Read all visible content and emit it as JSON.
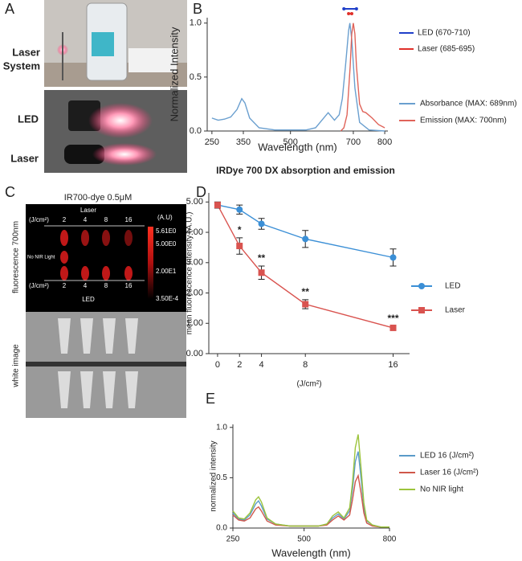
{
  "panel_labels": [
    "A",
    "B",
    "C",
    "D",
    "E"
  ],
  "panel_a": {
    "laser_system": [
      "Laser",
      "System"
    ],
    "led": "LED",
    "laser": "Laser"
  },
  "panel_c": {
    "title": "IR700-dye 0.5μM",
    "laser": "Laser",
    "led": "LED",
    "unit": "(J/cm²)",
    "doses": [
      "2",
      "4",
      "8",
      "16"
    ],
    "no_light": "No NIR Light",
    "colorbar_unit": "(A.U)",
    "colorbar_labels": [
      "5.61E0",
      "5.00E0",
      "2.00E1",
      "3.50E-4"
    ],
    "side_top": "fluorescence 700nm",
    "side_bottom": "white image"
  },
  "chart_data": [
    {
      "type": "line",
      "caption": "IRDye 700 DX absorption and emission",
      "xlabel": "Wavelength (nm)",
      "ylabel": "Normalized Intensity",
      "xlim": [
        235,
        810
      ],
      "xticks": [
        250,
        350,
        500,
        700,
        800
      ],
      "ylim": [
        0,
        1.05
      ],
      "yticks": [
        {
          "value": 0,
          "label": "0.0"
        },
        {
          "value": 0.5,
          "label": "0.5"
        },
        {
          "value": 1,
          "label": "1.0"
        }
      ],
      "legend": "right",
      "bands": [
        {
          "name": "LED (670-710)",
          "color": "#1f3fc9",
          "range": [
            670,
            710
          ]
        },
        {
          "name": "Laser (685-695)",
          "color": "#e0302a",
          "range": [
            685,
            695
          ]
        }
      ],
      "series": [
        {
          "name": "Absorbance (MAX: 689nm)",
          "color": "#6a9fcf",
          "x": [
            250,
            270,
            290,
            310,
            330,
            345,
            355,
            370,
            400,
            450,
            500,
            550,
            580,
            600,
            620,
            640,
            655,
            665,
            675,
            685,
            689,
            695,
            705,
            720,
            750,
            800
          ],
          "values": [
            0.12,
            0.1,
            0.11,
            0.13,
            0.2,
            0.3,
            0.26,
            0.12,
            0.03,
            0.01,
            0.01,
            0.01,
            0.03,
            0.1,
            0.17,
            0.1,
            0.15,
            0.3,
            0.6,
            0.93,
            1.0,
            0.85,
            0.4,
            0.08,
            0.01,
            0
          ]
        },
        {
          "name": "Emission (MAX: 700nm)",
          "color": "#e0645a",
          "x": [
            660,
            670,
            680,
            690,
            695,
            700,
            705,
            710,
            720,
            730,
            740,
            760,
            780,
            800
          ],
          "values": [
            0,
            0.03,
            0.15,
            0.6,
            0.9,
            1.0,
            0.9,
            0.6,
            0.25,
            0.18,
            0.17,
            0.12,
            0.06,
            0.03
          ]
        }
      ]
    },
    {
      "type": "line",
      "xlabel": "(J/cm²)",
      "ylabel": "mean fluorescence intensity (A.U.)",
      "x": [
        0,
        2,
        4,
        8,
        16
      ],
      "xlim": [
        -0.8,
        17.5
      ],
      "xticks": [
        0,
        2,
        4,
        8,
        16
      ],
      "ylim": [
        0,
        5.3
      ],
      "yticks": [
        {
          "value": 0,
          "label": "0.00"
        },
        {
          "value": 1,
          "label": "1.00"
        },
        {
          "value": 2,
          "label": "2.00"
        },
        {
          "value": 3,
          "label": "3.00"
        },
        {
          "value": 4,
          "label": "4.00"
        },
        {
          "value": 5,
          "label": "5.00"
        }
      ],
      "legend": "right",
      "series": [
        {
          "name": "LED",
          "color": "#3b8fd6",
          "marker": "circle",
          "values": [
            4.9,
            4.75,
            4.28,
            3.78,
            3.17
          ],
          "errors": [
            0.1,
            0.15,
            0.18,
            0.28,
            0.28
          ]
        },
        {
          "name": "Laser",
          "color": "#d9534f",
          "marker": "square",
          "values": [
            4.9,
            3.55,
            2.67,
            1.63,
            0.85
          ],
          "errors": [
            0.1,
            0.27,
            0.22,
            0.15,
            0.05
          ],
          "significance": [
            null,
            "*",
            "**",
            "**",
            "***"
          ]
        }
      ]
    },
    {
      "type": "line",
      "xlabel": "Wavelength (nm)",
      "ylabel": "normalized intensity",
      "xlim": [
        250,
        800
      ],
      "xticks": [
        250,
        500,
        800
      ],
      "ylim": [
        0,
        1.03
      ],
      "yticks": [
        {
          "value": 0,
          "label": "0.0"
        },
        {
          "value": 0.5,
          "label": "0.5"
        },
        {
          "value": 1,
          "label": "1.0"
        }
      ],
      "legend": "right",
      "series": [
        {
          "name": "LED 16 (J/cm²)",
          "color": "#5a9bc9",
          "x": [
            250,
            270,
            290,
            310,
            330,
            340,
            350,
            370,
            400,
            450,
            500,
            550,
            580,
            600,
            620,
            640,
            660,
            670,
            680,
            690,
            700,
            710,
            720,
            740,
            770,
            800
          ],
          "values": [
            0.15,
            0.09,
            0.08,
            0.13,
            0.24,
            0.27,
            0.22,
            0.09,
            0.04,
            0.02,
            0.02,
            0.02,
            0.04,
            0.1,
            0.14,
            0.09,
            0.17,
            0.38,
            0.66,
            0.76,
            0.5,
            0.2,
            0.07,
            0.03,
            0.01,
            0.01
          ]
        },
        {
          "name": "Laser 16 (J/cm²)",
          "color": "#d0574a",
          "x": [
            250,
            270,
            290,
            310,
            330,
            340,
            350,
            370,
            400,
            450,
            500,
            550,
            580,
            600,
            620,
            640,
            660,
            670,
            680,
            690,
            700,
            710,
            720,
            740,
            770,
            800
          ],
          "values": [
            0.13,
            0.08,
            0.07,
            0.1,
            0.19,
            0.21,
            0.17,
            0.07,
            0.03,
            0.02,
            0.02,
            0.02,
            0.03,
            0.08,
            0.12,
            0.08,
            0.13,
            0.28,
            0.46,
            0.52,
            0.35,
            0.15,
            0.05,
            0.02,
            0.01,
            0.01
          ]
        },
        {
          "name": "No NIR light",
          "color": "#9cc43c",
          "x": [
            250,
            270,
            290,
            310,
            330,
            340,
            350,
            370,
            400,
            450,
            500,
            550,
            580,
            600,
            620,
            640,
            660,
            670,
            680,
            690,
            700,
            710,
            720,
            740,
            770,
            800
          ],
          "values": [
            0.17,
            0.1,
            0.09,
            0.15,
            0.28,
            0.31,
            0.26,
            0.1,
            0.04,
            0.02,
            0.02,
            0.02,
            0.04,
            0.12,
            0.16,
            0.1,
            0.2,
            0.45,
            0.8,
            0.93,
            0.6,
            0.25,
            0.08,
            0.03,
            0.01,
            0.01
          ]
        }
      ]
    }
  ]
}
